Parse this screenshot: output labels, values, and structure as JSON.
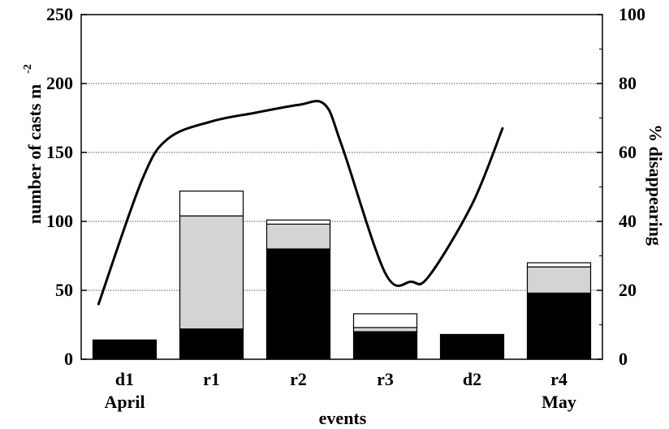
{
  "chart_data": {
    "type": "bar",
    "stacked": true,
    "categories": [
      "d1",
      "r1",
      "r2",
      "r3",
      "d2",
      "r4"
    ],
    "category_sublabels": [
      "April",
      "",
      "",
      "",
      "",
      "May"
    ],
    "xlabel": "events",
    "ylabel": "number of casts m",
    "ylabel_superscript": "-2",
    "y2label": "% disappearing",
    "ylim": [
      0,
      250
    ],
    "y2lim": [
      0,
      100
    ],
    "yticks": [
      "0",
      "50",
      "100",
      "150",
      "200",
      "250"
    ],
    "y2ticks": [
      "0",
      "20",
      "40",
      "60",
      "80",
      "100"
    ],
    "grid": "horizontal dotted",
    "series": [
      {
        "values": [
          14,
          22,
          80,
          20,
          18,
          48
        ],
        "color": "#000000"
      },
      {
        "values": [
          0,
          82,
          18,
          3,
          0,
          19
        ],
        "color": "#d4d4d4"
      },
      {
        "values": [
          0,
          18,
          3,
          10,
          0,
          3
        ],
        "color": "#ffffff"
      }
    ],
    "line": {
      "axis": "right",
      "x": [
        0.2,
        0.7,
        1.0,
        1.5,
        2.0,
        2.5,
        2.8,
        3.0,
        3.5,
        3.8,
        4.0,
        4.5,
        4.85
      ],
      "y": [
        16,
        52,
        64,
        69,
        71.5,
        73.8,
        74,
        62,
        25,
        22.5,
        24,
        45,
        67
      ]
    },
    "colors": {
      "stroke": "#000000",
      "grid": "#555555"
    }
  }
}
